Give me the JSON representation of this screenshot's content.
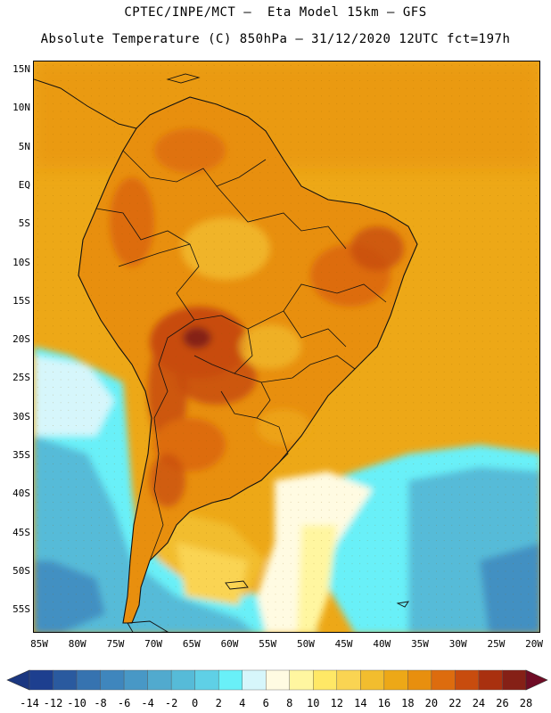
{
  "title_line1": "CPTEC/INPE/MCT –  Eta Model 15km – GFS",
  "title_line2": "Absolute Temperature (C) 850hPa – 31/12/2020 12UTC fct=197h",
  "lat_labels": [
    "15N",
    "10N",
    "5N",
    "EQ",
    "5S",
    "10S",
    "15S",
    "20S",
    "25S",
    "30S",
    "35S",
    "40S",
    "45S",
    "50S",
    "55S"
  ],
  "lon_labels": [
    "85W",
    "80W",
    "75W",
    "70W",
    "65W",
    "60W",
    "55W",
    "50W",
    "45W",
    "40W",
    "35W",
    "30W",
    "25W",
    "20W"
  ],
  "colorbar": {
    "labels": [
      "-14",
      "-12",
      "-10",
      "-8",
      "-6",
      "-4",
      "-2",
      "0",
      "2",
      "4",
      "6",
      "8",
      "10",
      "12",
      "14",
      "16",
      "18",
      "20",
      "22",
      "24",
      "26",
      "28"
    ],
    "colors": [
      "#1d3f8f",
      "#2a5a9f",
      "#3673b0",
      "#3f86bd",
      "#4898c6",
      "#51aace",
      "#56bbd8",
      "#5fd0e6",
      "#69f0f8",
      "#d6f6fb",
      "#fffbe2",
      "#fff6a0",
      "#ffe866",
      "#fad452",
      "#f2bd2e",
      "#eda817",
      "#e88f0e",
      "#dd6c0e",
      "#c84c0e",
      "#a9300f",
      "#852016"
    ],
    "low_color": "#1b3780",
    "high_color": "#6f0c25"
  },
  "map": {
    "ocean_color": "#edaa1c",
    "coast_color": "#111111"
  }
}
